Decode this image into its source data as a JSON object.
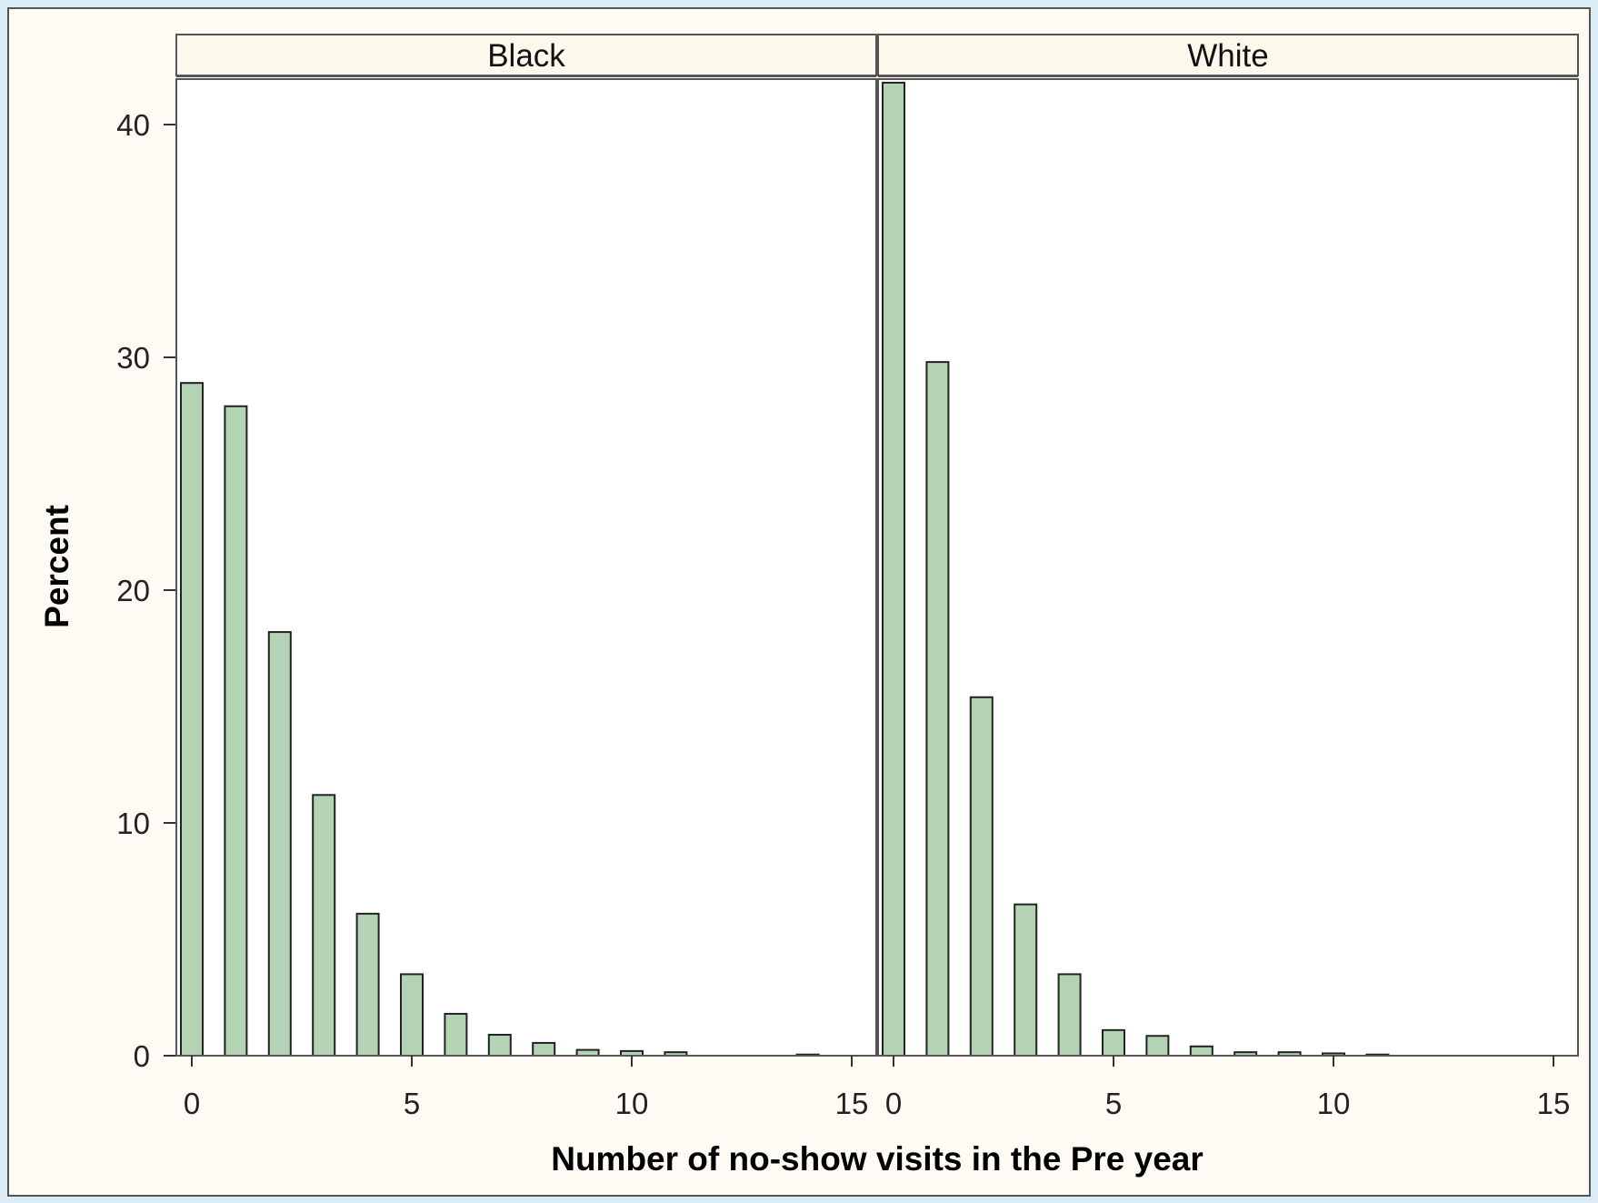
{
  "chart_data": {
    "type": "bar",
    "xlabel": "Number of no-show visits in the Pre year",
    "ylabel": "Percent",
    "ylim": [
      0,
      42
    ],
    "xlim": [
      -0.35,
      15.35
    ],
    "yticks": [
      0,
      10,
      20,
      30,
      40
    ],
    "xticks": [
      0,
      5,
      10,
      15
    ],
    "grid": false,
    "colors": {
      "bar_fill": "#b4d2b4",
      "bar_stroke": "#222222",
      "background": "#fdfbf3",
      "header_fill": "#fcf8ec",
      "page_border": "#cfe4f4"
    },
    "panels": [
      {
        "label": "Black",
        "x": [
          0,
          1,
          2,
          3,
          4,
          5,
          6,
          7,
          8,
          9,
          10,
          11,
          14
        ],
        "values": [
          28.9,
          27.9,
          18.2,
          11.2,
          6.1,
          3.5,
          1.8,
          0.9,
          0.55,
          0.25,
          0.2,
          0.15,
          0.05
        ]
      },
      {
        "label": "White",
        "x": [
          0,
          1,
          2,
          3,
          4,
          5,
          6,
          7,
          8,
          9,
          10,
          11
        ],
        "values": [
          41.8,
          29.8,
          15.4,
          6.5,
          3.5,
          1.1,
          0.85,
          0.4,
          0.15,
          0.15,
          0.1,
          0.05
        ]
      }
    ]
  }
}
